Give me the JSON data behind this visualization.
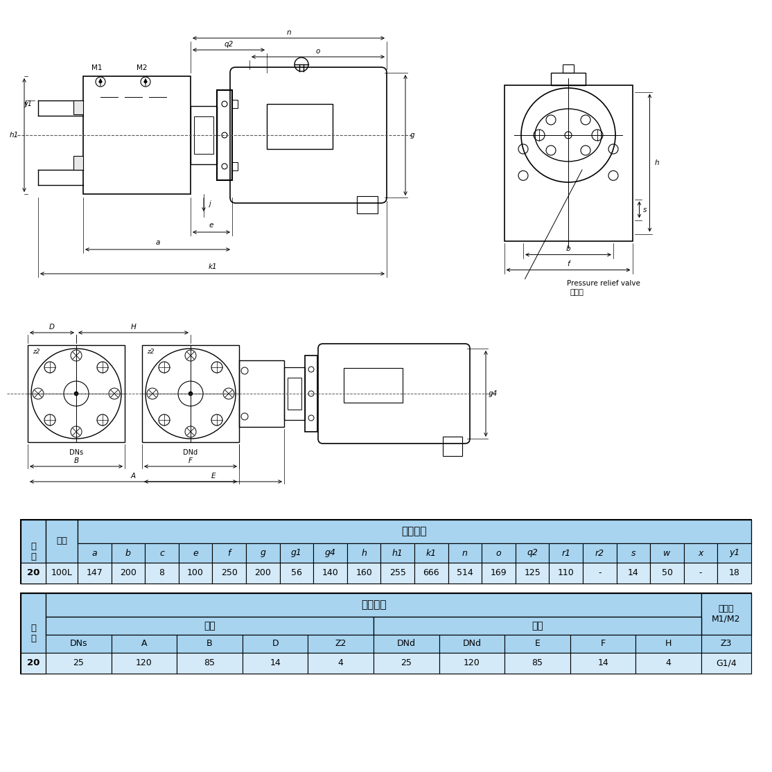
{
  "bg_color": "#ffffff",
  "table_header_bg": "#a8d4f0",
  "table_data_bg": "#d4eaf9",
  "table1_title": "机组尺寸",
  "table1_col_headers": [
    "a",
    "b",
    "c",
    "e",
    "f",
    "g",
    "g1",
    "g4",
    "h",
    "h1",
    "k1",
    "n",
    "o",
    "q2",
    "r1",
    "r2",
    "s",
    "w",
    "x",
    "y1"
  ],
  "table1_row": [
    "20",
    "100L",
    "147",
    "200",
    "8",
    "100",
    "250",
    "200",
    "56",
    "140",
    "160",
    "255",
    "666",
    "514",
    "169",
    "125",
    "110",
    "-",
    "14",
    "50",
    "-",
    "18"
  ],
  "table2_title": "安装尺寸",
  "table2_inlet": "进口",
  "table2_outlet": "出口",
  "table2_pressure": "压力表\nM1/M2",
  "table2_inlet_headers": [
    "DNs",
    "A",
    "B",
    "D",
    "Z2"
  ],
  "table2_outlet_headers": [
    "DNd",
    "DNd",
    "E",
    "F",
    "H"
  ],
  "table2_pressure_header": "Z3",
  "table2_row": [
    "20",
    "25",
    "120",
    "85",
    "14",
    "4",
    "25",
    "120",
    "85",
    "14",
    "4",
    "G1/4"
  ],
  "guige_label": "规\n格",
  "dianji_label": "电机",
  "pressure_relief_en": "Pressure relief valve",
  "pressure_relief_cn": "安全阀"
}
